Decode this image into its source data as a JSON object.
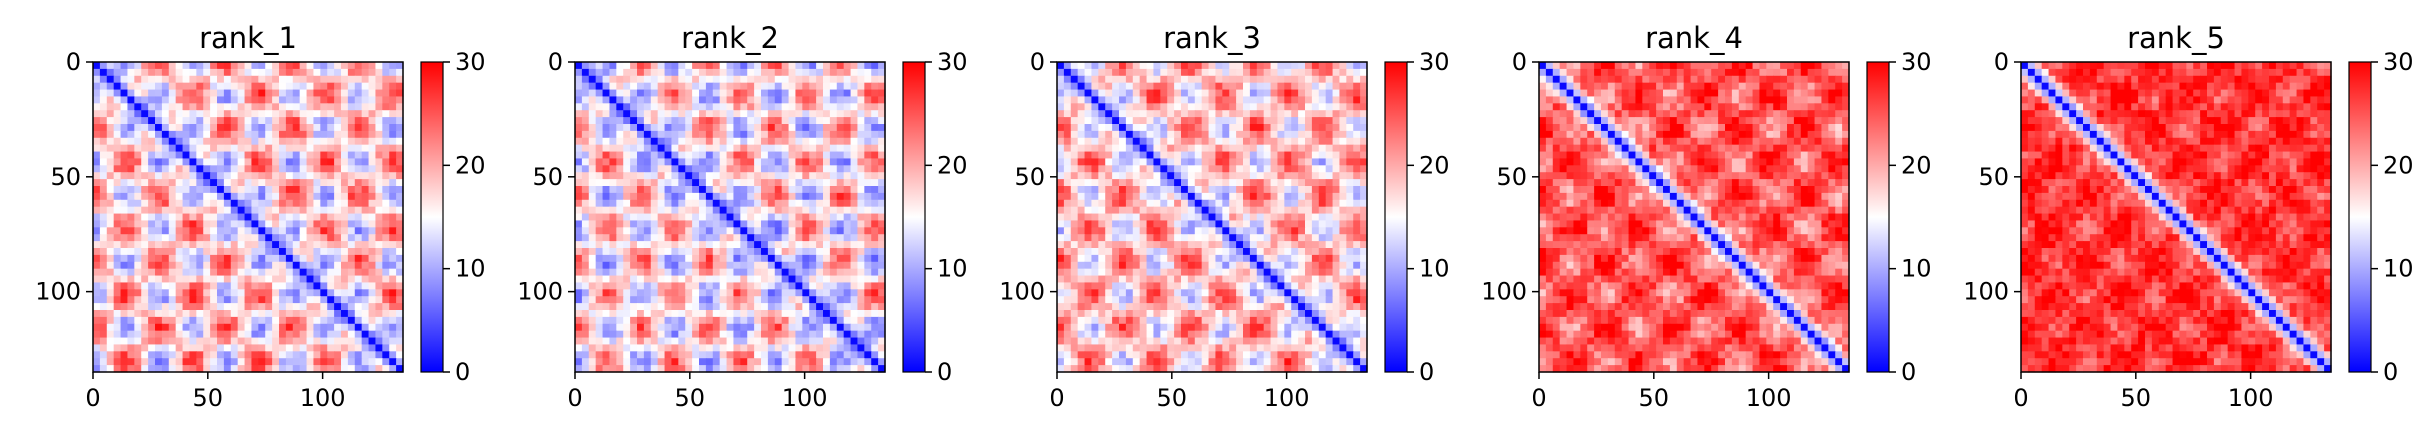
{
  "chart_data": [
    {
      "type": "heatmap",
      "title": "rank_1",
      "xlabel": "",
      "ylabel": "",
      "x_ticks": [
        0,
        50,
        100
      ],
      "y_ticks": [
        0,
        50,
        100
      ],
      "xlim": [
        0,
        135
      ],
      "ylim": [
        135,
        0
      ],
      "colorbar": {
        "min": 0,
        "max": 30,
        "ticks": [
          0,
          10,
          20,
          30
        ],
        "colormap": [
          "#0000ff",
          "#ffffff",
          "#ff0000"
        ]
      },
      "pattern": {
        "diagonal_band": true,
        "domain_period": 29,
        "offdiag_mean": 17.5,
        "offdiag_amplitude": 9
      }
    },
    {
      "type": "heatmap",
      "title": "rank_2",
      "xlabel": "",
      "ylabel": "",
      "x_ticks": [
        0,
        50,
        100
      ],
      "y_ticks": [
        0,
        50,
        100
      ],
      "xlim": [
        0,
        135
      ],
      "ylim": [
        135,
        0
      ],
      "colorbar": {
        "min": 0,
        "max": 30,
        "ticks": [
          0,
          10,
          20,
          30
        ],
        "colormap": [
          "#0000ff",
          "#ffffff",
          "#ff0000"
        ]
      },
      "pattern": {
        "diagonal_band": true,
        "domain_period": 29,
        "offdiag_mean": 16.5,
        "offdiag_amplitude": 9
      }
    },
    {
      "type": "heatmap",
      "title": "rank_3",
      "xlabel": "",
      "ylabel": "",
      "x_ticks": [
        0,
        50,
        100
      ],
      "y_ticks": [
        0,
        50,
        100
      ],
      "xlim": [
        0,
        135
      ],
      "ylim": [
        135,
        0
      ],
      "colorbar": {
        "min": 0,
        "max": 30,
        "ticks": [
          0,
          10,
          20,
          30
        ],
        "colormap": [
          "#0000ff",
          "#ffffff",
          "#ff0000"
        ]
      },
      "pattern": {
        "diagonal_band": true,
        "domain_period": 29,
        "offdiag_mean": 18.5,
        "offdiag_amplitude": 8
      }
    },
    {
      "type": "heatmap",
      "title": "rank_4",
      "xlabel": "",
      "ylabel": "",
      "x_ticks": [
        0,
        50,
        100
      ],
      "y_ticks": [
        0,
        50,
        100
      ],
      "xlim": [
        0,
        135
      ],
      "ylim": [
        135,
        0
      ],
      "colorbar": {
        "min": 0,
        "max": 30,
        "ticks": [
          0,
          10,
          20,
          30
        ],
        "colormap": [
          "#0000ff",
          "#ffffff",
          "#ff0000"
        ]
      },
      "pattern": {
        "diagonal_band": true,
        "domain_period": 29,
        "offdiag_mean": 25,
        "offdiag_amplitude": 5
      }
    },
    {
      "type": "heatmap",
      "title": "rank_5",
      "xlabel": "",
      "ylabel": "",
      "x_ticks": [
        0,
        50,
        100
      ],
      "y_ticks": [
        0,
        50,
        100
      ],
      "xlim": [
        0,
        135
      ],
      "ylim": [
        135,
        0
      ],
      "colorbar": {
        "min": 0,
        "max": 30,
        "ticks": [
          0,
          10,
          20,
          30
        ],
        "colormap": [
          "#0000ff",
          "#ffffff",
          "#ff0000"
        ]
      },
      "pattern": {
        "diagonal_band": true,
        "domain_period": 29,
        "offdiag_mean": 27,
        "offdiag_amplitude": 3
      }
    }
  ]
}
